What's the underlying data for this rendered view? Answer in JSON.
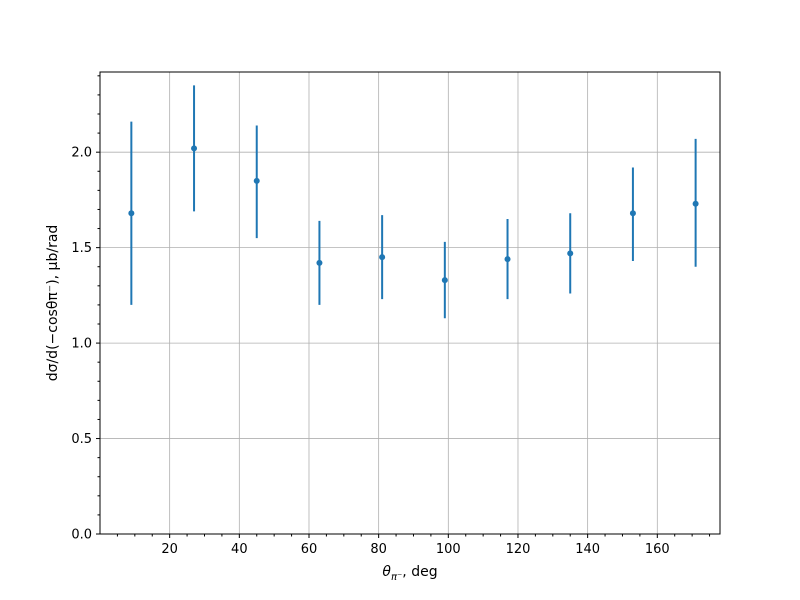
{
  "chart_data": {
    "type": "scatter",
    "xlabel_main": "θ",
    "xlabel_sub": "π⁻",
    "xlabel_rest": ", deg",
    "ylabel": "dσ/d(−cosθπ⁻), μb/rad",
    "xlim": [
      0,
      178
    ],
    "ylim": [
      0,
      2.42
    ],
    "x_ticks": [
      20,
      40,
      60,
      80,
      100,
      120,
      140,
      160
    ],
    "y_ticks": [
      0.0,
      0.5,
      1.0,
      1.5,
      2.0
    ],
    "y_tick_labels": [
      "0.0",
      "0.5",
      "1.0",
      "1.5",
      "2.0"
    ],
    "grid": true,
    "color": "#1f77b4",
    "points": [
      {
        "x": 9,
        "y": 1.68,
        "lo": 1.2,
        "hi": 2.16
      },
      {
        "x": 27,
        "y": 2.02,
        "lo": 1.69,
        "hi": 2.35
      },
      {
        "x": 45,
        "y": 1.85,
        "lo": 1.55,
        "hi": 2.14
      },
      {
        "x": 63,
        "y": 1.42,
        "lo": 1.2,
        "hi": 1.64
      },
      {
        "x": 81,
        "y": 1.45,
        "lo": 1.23,
        "hi": 1.67
      },
      {
        "x": 99,
        "y": 1.33,
        "lo": 1.13,
        "hi": 1.53
      },
      {
        "x": 117,
        "y": 1.44,
        "lo": 1.23,
        "hi": 1.65
      },
      {
        "x": 135,
        "y": 1.47,
        "lo": 1.26,
        "hi": 1.68
      },
      {
        "x": 153,
        "y": 1.68,
        "lo": 1.43,
        "hi": 1.92
      },
      {
        "x": 171,
        "y": 1.73,
        "lo": 1.4,
        "hi": 2.07
      }
    ]
  }
}
